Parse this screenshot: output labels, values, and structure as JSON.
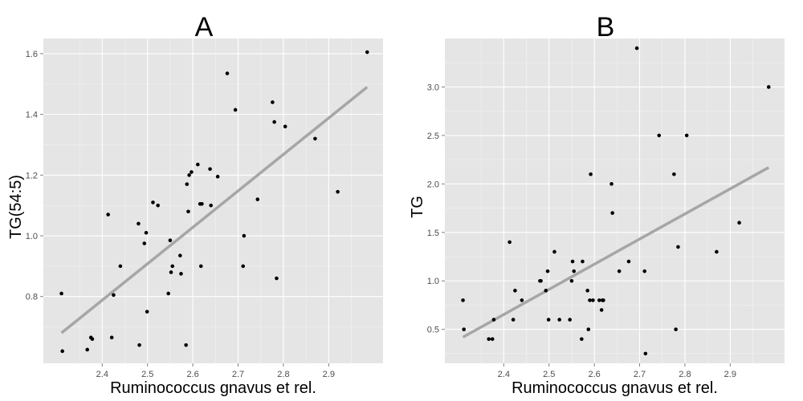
{
  "chart_data": [
    {
      "type": "scatter",
      "title": "A",
      "xlabel": "Ruminococcus gnavus et rel.",
      "ylabel": "TG(54:5)",
      "xlim": [
        2.27,
        3.02
      ],
      "ylim": [
        0.58,
        1.65
      ],
      "xticks": [
        2.4,
        2.5,
        2.6,
        2.7,
        2.8,
        2.9
      ],
      "xtick_labels": [
        "2.4",
        "2.5",
        "2.6",
        "2.7",
        "2.8",
        "2.9"
      ],
      "yticks": [
        0.8,
        1.0,
        1.2,
        1.4,
        1.6
      ],
      "ytick_labels": [
        "0.8",
        "1.0",
        "1.2",
        "1.4",
        "1.6"
      ],
      "grid": true,
      "trend_line": {
        "x": [
          2.31,
          2.985
        ],
        "y": [
          0.68,
          1.49
        ]
      },
      "points": {
        "x": [
          2.31,
          2.312,
          2.367,
          2.375,
          2.378,
          2.413,
          2.421,
          2.425,
          2.44,
          2.48,
          2.482,
          2.493,
          2.497,
          2.499,
          2.512,
          2.523,
          2.546,
          2.55,
          2.552,
          2.555,
          2.572,
          2.574,
          2.585,
          2.587,
          2.59,
          2.592,
          2.597,
          2.611,
          2.616,
          2.618,
          2.62,
          2.638,
          2.64,
          2.655,
          2.676,
          2.694,
          2.711,
          2.713,
          2.743,
          2.776,
          2.78,
          2.785,
          2.804,
          2.87,
          2.92,
          2.985
        ],
        "y": [
          0.81,
          0.62,
          0.625,
          0.665,
          0.66,
          1.07,
          0.665,
          0.805,
          0.9,
          1.04,
          0.64,
          0.975,
          1.01,
          0.75,
          1.11,
          1.1,
          0.81,
          0.985,
          0.88,
          0.9,
          0.935,
          0.875,
          0.64,
          1.17,
          1.08,
          1.2,
          1.21,
          1.235,
          1.105,
          0.9,
          1.105,
          1.22,
          1.1,
          1.195,
          1.535,
          1.415,
          0.9,
          1.0,
          1.12,
          1.44,
          1.375,
          0.86,
          1.36,
          1.32,
          1.145,
          1.605
        ]
      }
    },
    {
      "type": "scatter",
      "title": "B",
      "xlabel": "Ruminococcus gnavus et rel.",
      "ylabel": "TG",
      "xlim": [
        2.27,
        3.02
      ],
      "ylim": [
        0.15,
        3.5
      ],
      "xticks": [
        2.4,
        2.5,
        2.6,
        2.7,
        2.8,
        2.9
      ],
      "xtick_labels": [
        "2.4",
        "2.5",
        "2.6",
        "2.7",
        "2.8",
        "2.9"
      ],
      "yticks": [
        0.5,
        1.0,
        1.5,
        2.0,
        2.5,
        3.0
      ],
      "ytick_labels": [
        "0.5",
        "1.0",
        "1.5",
        "2.0",
        "2.5",
        "3.0"
      ],
      "grid": true,
      "trend_line": {
        "x": [
          2.31,
          2.985
        ],
        "y": [
          0.42,
          2.17
        ]
      },
      "points": {
        "x": [
          2.31,
          2.312,
          2.367,
          2.375,
          2.378,
          2.413,
          2.421,
          2.425,
          2.44,
          2.48,
          2.482,
          2.493,
          2.497,
          2.499,
          2.512,
          2.523,
          2.546,
          2.55,
          2.552,
          2.555,
          2.572,
          2.574,
          2.585,
          2.587,
          2.59,
          2.592,
          2.597,
          2.611,
          2.616,
          2.618,
          2.62,
          2.638,
          2.64,
          2.655,
          2.676,
          2.694,
          2.711,
          2.713,
          2.743,
          2.776,
          2.78,
          2.785,
          2.804,
          2.87,
          2.92,
          2.985
        ],
        "y": [
          0.8,
          0.5,
          0.4,
          0.4,
          0.6,
          1.4,
          0.6,
          0.9,
          0.8,
          1.0,
          1.0,
          0.9,
          1.1,
          0.6,
          1.3,
          0.6,
          0.6,
          1.0,
          1.2,
          1.1,
          0.4,
          1.2,
          0.9,
          0.5,
          0.8,
          2.1,
          0.8,
          0.8,
          0.7,
          0.8,
          0.8,
          2.0,
          1.7,
          1.1,
          1.2,
          3.4,
          1.1,
          0.25,
          2.5,
          2.1,
          0.5,
          1.35,
          2.5,
          1.3,
          1.6,
          3.0
        ]
      }
    }
  ]
}
